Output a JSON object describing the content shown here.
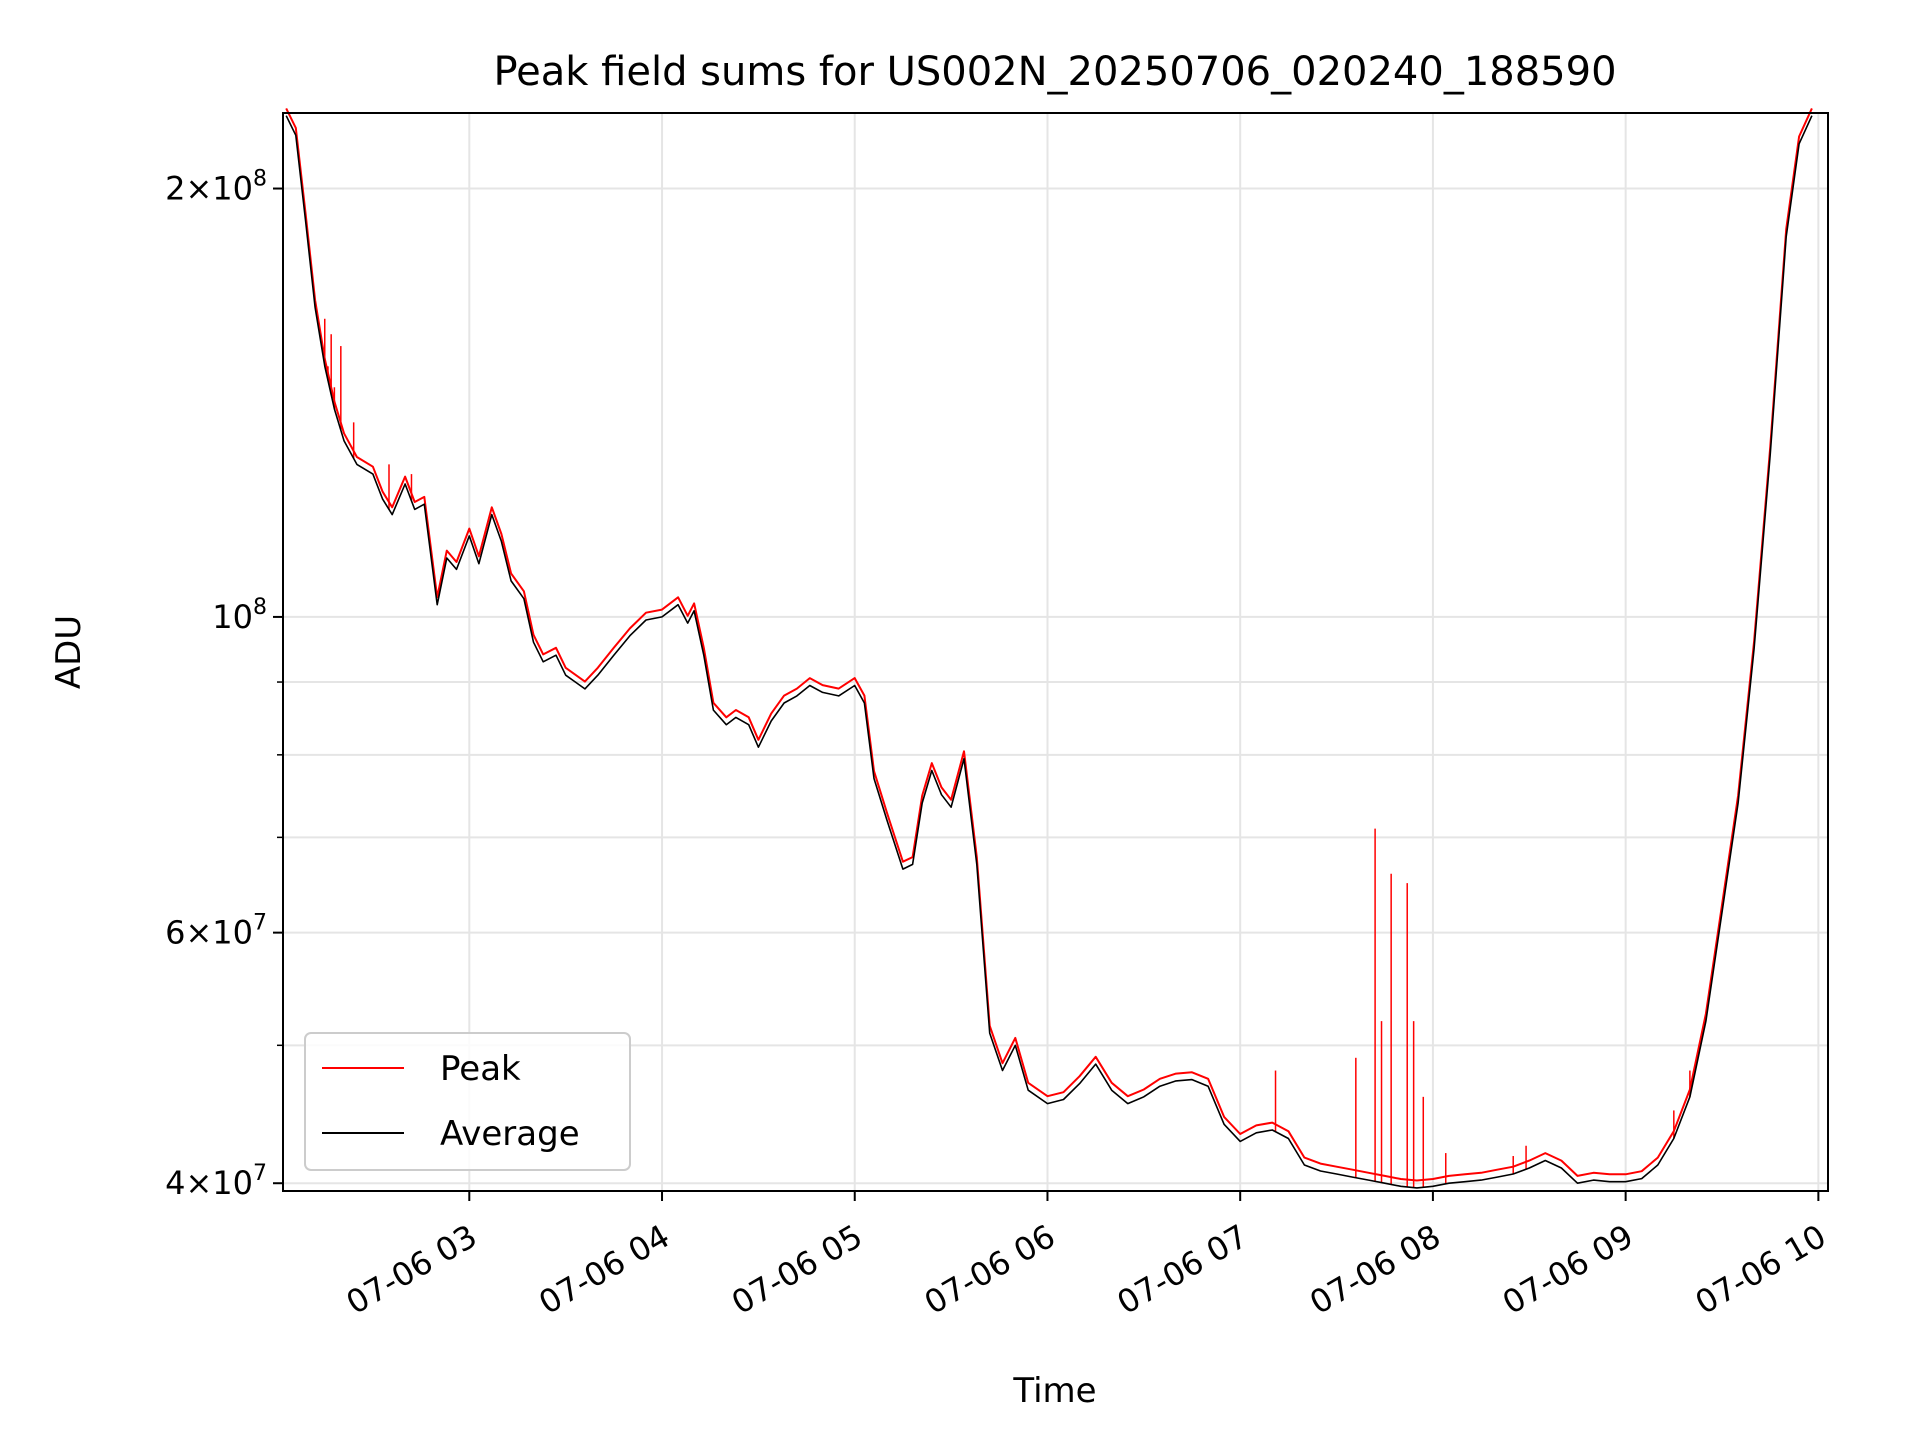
{
  "chart_data": {
    "type": "line",
    "title": "Peak field sums for US002N_20250706_020240_188590",
    "xlabel": "Time",
    "ylabel": "ADU",
    "y_scale": "log",
    "ylim": [
      39500000,
      226000000
    ],
    "xlim": [
      "2025-07-06 02:02",
      "2025-07-06 10:03"
    ],
    "grid": true,
    "legend_position": "lower-left",
    "x_ticks": [
      {
        "t": "2025-07-06 03:00",
        "label": "07-06 03"
      },
      {
        "t": "2025-07-06 04:00",
        "label": "07-06 04"
      },
      {
        "t": "2025-07-06 05:00",
        "label": "07-06 05"
      },
      {
        "t": "2025-07-06 06:00",
        "label": "07-06 06"
      },
      {
        "t": "2025-07-06 07:00",
        "label": "07-06 07"
      },
      {
        "t": "2025-07-06 08:00",
        "label": "07-06 08"
      },
      {
        "t": "2025-07-06 09:00",
        "label": "07-06 09"
      },
      {
        "t": "2025-07-06 10:00",
        "label": "07-06 10"
      }
    ],
    "y_ticks_major": [
      {
        "v": 40000000,
        "mant": "4",
        "exp": "7"
      },
      {
        "v": 60000000,
        "mant": "6",
        "exp": "7"
      },
      {
        "v": 100000000,
        "mant": "",
        "exp": "8"
      },
      {
        "v": 200000000,
        "mant": "2",
        "exp": "8"
      }
    ],
    "y_ticks_minor": [
      50000000,
      70000000,
      80000000,
      90000000
    ],
    "series": [
      {
        "name": "Average",
        "color": "#000000",
        "points": [
          [
            "2025-07-06 02:03",
            225000000
          ],
          [
            "2025-07-06 02:06",
            218000000
          ],
          [
            "2025-07-06 02:09",
            190000000
          ],
          [
            "2025-07-06 02:12",
            165000000
          ],
          [
            "2025-07-06 02:15",
            150000000
          ],
          [
            "2025-07-06 02:18",
            140000000
          ],
          [
            "2025-07-06 02:21",
            133000000
          ],
          [
            "2025-07-06 02:25",
            128000000
          ],
          [
            "2025-07-06 02:30",
            126000000
          ],
          [
            "2025-07-06 02:33",
            121000000
          ],
          [
            "2025-07-06 02:36",
            118000000
          ],
          [
            "2025-07-06 02:40",
            124000000
          ],
          [
            "2025-07-06 02:43",
            119000000
          ],
          [
            "2025-07-06 02:46",
            120000000
          ],
          [
            "2025-07-06 02:50",
            102000000
          ],
          [
            "2025-07-06 02:53",
            110000000
          ],
          [
            "2025-07-06 02:56",
            108000000
          ],
          [
            "2025-07-06 03:00",
            114000000
          ],
          [
            "2025-07-06 03:03",
            109000000
          ],
          [
            "2025-07-06 03:07",
            118000000
          ],
          [
            "2025-07-06 03:10",
            113000000
          ],
          [
            "2025-07-06 03:13",
            106000000
          ],
          [
            "2025-07-06 03:17",
            103000000
          ],
          [
            "2025-07-06 03:20",
            96000000
          ],
          [
            "2025-07-06 03:23",
            93000000
          ],
          [
            "2025-07-06 03:27",
            94000000
          ],
          [
            "2025-07-06 03:30",
            91000000
          ],
          [
            "2025-07-06 03:33",
            90000000
          ],
          [
            "2025-07-06 03:36",
            89000000
          ],
          [
            "2025-07-06 03:40",
            91000000
          ],
          [
            "2025-07-06 03:45",
            94000000
          ],
          [
            "2025-07-06 03:50",
            97000000
          ],
          [
            "2025-07-06 03:55",
            99500000
          ],
          [
            "2025-07-06 04:00",
            100000000
          ],
          [
            "2025-07-06 04:05",
            102000000
          ],
          [
            "2025-07-06 04:08",
            99000000
          ],
          [
            "2025-07-06 04:10",
            101000000
          ],
          [
            "2025-07-06 04:13",
            94000000
          ],
          [
            "2025-07-06 04:16",
            86000000
          ],
          [
            "2025-07-06 04:20",
            84000000
          ],
          [
            "2025-07-06 04:23",
            85000000
          ],
          [
            "2025-07-06 04:27",
            84000000
          ],
          [
            "2025-07-06 04:30",
            81000000
          ],
          [
            "2025-07-06 04:34",
            84500000
          ],
          [
            "2025-07-06 04:38",
            87000000
          ],
          [
            "2025-07-06 04:42",
            88000000
          ],
          [
            "2025-07-06 04:46",
            89500000
          ],
          [
            "2025-07-06 04:50",
            88500000
          ],
          [
            "2025-07-06 04:55",
            88000000
          ],
          [
            "2025-07-06 05:00",
            89500000
          ],
          [
            "2025-07-06 05:03",
            87000000
          ],
          [
            "2025-07-06 05:06",
            77000000
          ],
          [
            "2025-07-06 05:10",
            72000000
          ],
          [
            "2025-07-06 05:15",
            66500000
          ],
          [
            "2025-07-06 05:18",
            67000000
          ],
          [
            "2025-07-06 05:21",
            74000000
          ],
          [
            "2025-07-06 05:24",
            78000000
          ],
          [
            "2025-07-06 05:27",
            75000000
          ],
          [
            "2025-07-06 05:30",
            73500000
          ],
          [
            "2025-07-06 05:34",
            79500000
          ],
          [
            "2025-07-06 05:38",
            67000000
          ],
          [
            "2025-07-06 05:42",
            51000000
          ],
          [
            "2025-07-06 05:46",
            48000000
          ],
          [
            "2025-07-06 05:50",
            50000000
          ],
          [
            "2025-07-06 05:54",
            46500000
          ],
          [
            "2025-07-06 06:00",
            45500000
          ],
          [
            "2025-07-06 06:05",
            45800000
          ],
          [
            "2025-07-06 06:10",
            47000000
          ],
          [
            "2025-07-06 06:15",
            48500000
          ],
          [
            "2025-07-06 06:20",
            46500000
          ],
          [
            "2025-07-06 06:25",
            45500000
          ],
          [
            "2025-07-06 06:30",
            46000000
          ],
          [
            "2025-07-06 06:35",
            46800000
          ],
          [
            "2025-07-06 06:40",
            47200000
          ],
          [
            "2025-07-06 06:45",
            47300000
          ],
          [
            "2025-07-06 06:50",
            46800000
          ],
          [
            "2025-07-06 06:55",
            44000000
          ],
          [
            "2025-07-06 07:00",
            42800000
          ],
          [
            "2025-07-06 07:05",
            43400000
          ],
          [
            "2025-07-06 07:10",
            43600000
          ],
          [
            "2025-07-06 07:15",
            43000000
          ],
          [
            "2025-07-06 07:20",
            41200000
          ],
          [
            "2025-07-06 07:25",
            40800000
          ],
          [
            "2025-07-06 07:30",
            40600000
          ],
          [
            "2025-07-06 07:35",
            40400000
          ],
          [
            "2025-07-06 07:40",
            40200000
          ],
          [
            "2025-07-06 07:45",
            40000000
          ],
          [
            "2025-07-06 07:50",
            39800000
          ],
          [
            "2025-07-06 07:55",
            39700000
          ],
          [
            "2025-07-06 08:00",
            39800000
          ],
          [
            "2025-07-06 08:05",
            40000000
          ],
          [
            "2025-07-06 08:10",
            40100000
          ],
          [
            "2025-07-06 08:15",
            40200000
          ],
          [
            "2025-07-06 08:20",
            40400000
          ],
          [
            "2025-07-06 08:25",
            40600000
          ],
          [
            "2025-07-06 08:30",
            41000000
          ],
          [
            "2025-07-06 08:35",
            41500000
          ],
          [
            "2025-07-06 08:40",
            41000000
          ],
          [
            "2025-07-06 08:45",
            40000000
          ],
          [
            "2025-07-06 08:50",
            40200000
          ],
          [
            "2025-07-06 08:55",
            40100000
          ],
          [
            "2025-07-06 09:00",
            40100000
          ],
          [
            "2025-07-06 09:05",
            40300000
          ],
          [
            "2025-07-06 09:10",
            41200000
          ],
          [
            "2025-07-06 09:15",
            43000000
          ],
          [
            "2025-07-06 09:20",
            46000000
          ],
          [
            "2025-07-06 09:25",
            52000000
          ],
          [
            "2025-07-06 09:30",
            62000000
          ],
          [
            "2025-07-06 09:35",
            74000000
          ],
          [
            "2025-07-06 09:40",
            95000000
          ],
          [
            "2025-07-06 09:45",
            130000000
          ],
          [
            "2025-07-06 09:50",
            185000000
          ],
          [
            "2025-07-06 09:54",
            215000000
          ],
          [
            "2025-07-06 09:58",
            225000000
          ]
        ]
      },
      {
        "name": "Peak",
        "color": "#ff0000",
        "spikes": [
          [
            "2025-07-06 02:15",
            162000000
          ],
          [
            "2025-07-06 02:16",
            150000000
          ],
          [
            "2025-07-06 02:17",
            158000000
          ],
          [
            "2025-07-06 02:18",
            145000000
          ],
          [
            "2025-07-06 02:20",
            155000000
          ],
          [
            "2025-07-06 02:24",
            137000000
          ],
          [
            "2025-07-06 02:35",
            128000000
          ],
          [
            "2025-07-06 02:42",
            126000000
          ],
          [
            "2025-07-06 07:11",
            48000000
          ],
          [
            "2025-07-06 07:36",
            49000000
          ],
          [
            "2025-07-06 07:42",
            71000000
          ],
          [
            "2025-07-06 07:44",
            52000000
          ],
          [
            "2025-07-06 07:47",
            66000000
          ],
          [
            "2025-07-06 07:52",
            65000000
          ],
          [
            "2025-07-06 07:54",
            52000000
          ],
          [
            "2025-07-06 07:57",
            46000000
          ],
          [
            "2025-07-06 08:04",
            42000000
          ],
          [
            "2025-07-06 08:25",
            41800000
          ],
          [
            "2025-07-06 08:29",
            42500000
          ],
          [
            "2025-07-06 09:15",
            45000000
          ],
          [
            "2025-07-06 09:20",
            48000000
          ]
        ]
      }
    ]
  }
}
